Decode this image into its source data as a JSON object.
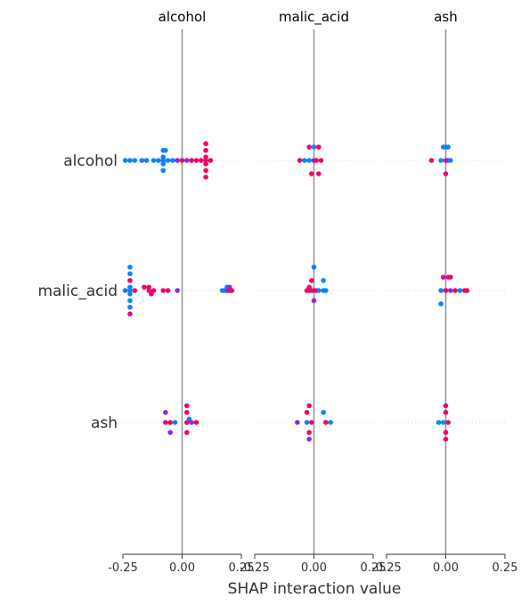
{
  "chart_data": {
    "type": "scatter",
    "kind": "shap-interaction-summary",
    "xlabel": "SHAP interaction value",
    "features": [
      "alcohol",
      "malic_acid",
      "ash"
    ],
    "panel_titles": [
      "alcohol",
      "malic_acid",
      "ash"
    ],
    "row_labels": [
      "alcohol",
      "malic_acid",
      "ash"
    ],
    "x_ticks": [
      -0.25,
      0.0,
      0.25
    ],
    "x_tick_labels": [
      "-0.25",
      "0.00",
      "0.25"
    ],
    "xlim": [
      -0.25,
      0.25
    ],
    "colormap": {
      "low": "#008bfb",
      "mid": "#8a2be2",
      "high": "#ff0052"
    },
    "grid": false,
    "points": [
      [
        [
          {
            "x": 0.1,
            "dy": -2.5,
            "v": 0.95
          },
          {
            "x": -0.08,
            "dy": -1.5,
            "v": 0.05
          },
          {
            "x": 0.1,
            "dy": -1.5,
            "v": 0.95
          },
          {
            "x": -0.07,
            "dy": -1.5,
            "v": 0.0
          },
          {
            "x": 0.1,
            "dy": -0.5,
            "v": 0.9
          },
          {
            "x": -0.08,
            "dy": -0.5,
            "v": 0.05
          },
          {
            "x": -0.24,
            "dy": 0,
            "v": 0.0
          },
          {
            "x": -0.22,
            "dy": 0,
            "v": 0.05
          },
          {
            "x": -0.2,
            "dy": 0,
            "v": 0.0
          },
          {
            "x": -0.17,
            "dy": 0,
            "v": 0.1
          },
          {
            "x": -0.15,
            "dy": 0,
            "v": 0.05
          },
          {
            "x": -0.12,
            "dy": 0,
            "v": 0.0
          },
          {
            "x": -0.1,
            "dy": 0,
            "v": 0.05
          },
          {
            "x": -0.08,
            "dy": 0,
            "v": 0.1
          },
          {
            "x": -0.06,
            "dy": 0,
            "v": 0.0
          },
          {
            "x": -0.04,
            "dy": 0,
            "v": 0.05
          },
          {
            "x": -0.02,
            "dy": 0,
            "v": 0.5
          },
          {
            "x": 0.0,
            "dy": 0,
            "v": 0.9
          },
          {
            "x": 0.02,
            "dy": 0,
            "v": 0.55
          },
          {
            "x": 0.04,
            "dy": 0,
            "v": 0.95
          },
          {
            "x": 0.06,
            "dy": 0,
            "v": 0.9
          },
          {
            "x": 0.08,
            "dy": 0,
            "v": 0.95
          },
          {
            "x": 0.1,
            "dy": 0,
            "v": 0.9
          },
          {
            "x": 0.12,
            "dy": 0,
            "v": 0.95
          },
          {
            "x": -0.08,
            "dy": 0.5,
            "v": 0.05
          },
          {
            "x": 0.1,
            "dy": 0.5,
            "v": 0.95
          },
          {
            "x": -0.08,
            "dy": 1.5,
            "v": 0.0
          },
          {
            "x": 0.1,
            "dy": 1.5,
            "v": 0.95
          },
          {
            "x": 0.1,
            "dy": 2.5,
            "v": 0.9
          }
        ],
        [
          {
            "x": -0.02,
            "dy": -2,
            "v": 0.9
          },
          {
            "x": 0.0,
            "dy": -2,
            "v": 0.05
          },
          {
            "x": 0.02,
            "dy": -2,
            "v": 0.95
          },
          {
            "x": -0.06,
            "dy": 0,
            "v": 0.9
          },
          {
            "x": -0.04,
            "dy": 0,
            "v": 0.05
          },
          {
            "x": -0.02,
            "dy": 0,
            "v": 0.0
          },
          {
            "x": 0.0,
            "dy": 0,
            "v": 0.5
          },
          {
            "x": 0.01,
            "dy": 0,
            "v": 0.95
          },
          {
            "x": 0.03,
            "dy": 0,
            "v": 0.9
          },
          {
            "x": -0.01,
            "dy": 2,
            "v": 0.95
          },
          {
            "x": 0.02,
            "dy": 2,
            "v": 0.9
          }
        ],
        [
          {
            "x": -0.01,
            "dy": -2,
            "v": 0.05
          },
          {
            "x": 0.0,
            "dy": -2,
            "v": 0.0
          },
          {
            "x": 0.01,
            "dy": -2,
            "v": 0.05
          },
          {
            "x": -0.06,
            "dy": 0,
            "v": 0.9
          },
          {
            "x": -0.02,
            "dy": 0,
            "v": 0.0
          },
          {
            "x": 0.0,
            "dy": 0,
            "v": 0.95
          },
          {
            "x": 0.01,
            "dy": 0,
            "v": 0.5
          },
          {
            "x": 0.02,
            "dy": 0,
            "v": 0.05
          },
          {
            "x": 0.0,
            "dy": 2,
            "v": 0.9
          }
        ]
      ],
      [
        [
          {
            "x": -0.22,
            "dy": -3.5,
            "v": 0.05
          },
          {
            "x": -0.22,
            "dy": -2.5,
            "v": 0.0
          },
          {
            "x": -0.22,
            "dy": -1.5,
            "v": 0.9
          },
          {
            "x": -0.22,
            "dy": -0.5,
            "v": 0.05
          },
          {
            "x": -0.16,
            "dy": -0.5,
            "v": 0.9
          },
          {
            "x": -0.14,
            "dy": -0.5,
            "v": 0.95
          },
          {
            "x": 0.19,
            "dy": -0.5,
            "v": 0.1
          },
          {
            "x": 0.2,
            "dy": -0.5,
            "v": 0.5
          },
          {
            "x": -0.24,
            "dy": 0,
            "v": 0.05
          },
          {
            "x": -0.22,
            "dy": 0,
            "v": 0.0
          },
          {
            "x": -0.2,
            "dy": 0,
            "v": 0.95
          },
          {
            "x": -0.14,
            "dy": 0,
            "v": 0.9
          },
          {
            "x": -0.12,
            "dy": 0,
            "v": 0.95
          },
          {
            "x": -0.08,
            "dy": 0,
            "v": 0.9
          },
          {
            "x": -0.06,
            "dy": 0,
            "v": 0.95
          },
          {
            "x": -0.02,
            "dy": 0,
            "v": 0.5
          },
          {
            "x": 0.17,
            "dy": 0,
            "v": 0.05
          },
          {
            "x": 0.18,
            "dy": 0,
            "v": 0.0
          },
          {
            "x": 0.19,
            "dy": 0,
            "v": 0.5
          },
          {
            "x": 0.2,
            "dy": 0,
            "v": 0.9
          },
          {
            "x": 0.21,
            "dy": 0,
            "v": 0.95
          },
          {
            "x": -0.22,
            "dy": 0.5,
            "v": 0.05
          },
          {
            "x": -0.13,
            "dy": 0.5,
            "v": 0.9
          },
          {
            "x": -0.22,
            "dy": 1.5,
            "v": 0.0
          },
          {
            "x": -0.22,
            "dy": 2.5,
            "v": 0.05
          },
          {
            "x": -0.22,
            "dy": 3.5,
            "v": 0.9
          }
        ],
        [
          {
            "x": 0.0,
            "dy": -3.5,
            "v": 0.05
          },
          {
            "x": -0.01,
            "dy": -1.5,
            "v": 0.95
          },
          {
            "x": 0.04,
            "dy": -1.5,
            "v": 0.0
          },
          {
            "x": -0.02,
            "dy": -0.5,
            "v": 0.9
          },
          {
            "x": -0.03,
            "dy": 0,
            "v": 0.95
          },
          {
            "x": -0.02,
            "dy": 0,
            "v": 0.9
          },
          {
            "x": -0.01,
            "dy": 0,
            "v": 0.95
          },
          {
            "x": 0.0,
            "dy": 0,
            "v": 0.9
          },
          {
            "x": 0.01,
            "dy": 0,
            "v": 0.95
          },
          {
            "x": 0.02,
            "dy": 0,
            "v": 0.05
          },
          {
            "x": 0.04,
            "dy": 0,
            "v": 0.0
          },
          {
            "x": 0.05,
            "dy": 0,
            "v": 0.05
          },
          {
            "x": 0.0,
            "dy": 1.5,
            "v": 0.5
          }
        ],
        [
          {
            "x": -0.01,
            "dy": -2,
            "v": 0.9
          },
          {
            "x": 0.01,
            "dy": -2,
            "v": 0.5
          },
          {
            "x": 0.02,
            "dy": -2,
            "v": 0.95
          },
          {
            "x": -0.02,
            "dy": 0,
            "v": 0.05
          },
          {
            "x": 0.0,
            "dy": 0,
            "v": 0.9
          },
          {
            "x": 0.02,
            "dy": 0,
            "v": 0.5
          },
          {
            "x": 0.04,
            "dy": 0,
            "v": 0.9
          },
          {
            "x": 0.06,
            "dy": 0,
            "v": 0.05
          },
          {
            "x": 0.08,
            "dy": 0,
            "v": 0.9
          },
          {
            "x": 0.09,
            "dy": 0,
            "v": 0.95
          },
          {
            "x": -0.02,
            "dy": 2,
            "v": 0.0
          }
        ]
      ],
      [
        [
          {
            "x": 0.02,
            "dy": -2.5,
            "v": 0.9
          },
          {
            "x": -0.07,
            "dy": -1.5,
            "v": 0.5
          },
          {
            "x": 0.02,
            "dy": -1.5,
            "v": 0.95
          },
          {
            "x": 0.03,
            "dy": -0.5,
            "v": 0.05
          },
          {
            "x": -0.07,
            "dy": 0,
            "v": 0.9
          },
          {
            "x": -0.05,
            "dy": 0,
            "v": 0.95
          },
          {
            "x": -0.03,
            "dy": 0,
            "v": 0.05
          },
          {
            "x": 0.02,
            "dy": 0,
            "v": 0.9
          },
          {
            "x": 0.04,
            "dy": 0,
            "v": 0.5
          },
          {
            "x": 0.06,
            "dy": 0,
            "v": 0.95
          },
          {
            "x": -0.05,
            "dy": 1.5,
            "v": 0.5
          },
          {
            "x": 0.02,
            "dy": 1.5,
            "v": 0.9
          }
        ],
        [
          {
            "x": -0.02,
            "dy": -2.5,
            "v": 0.9
          },
          {
            "x": -0.03,
            "dy": -1.5,
            "v": 0.95
          },
          {
            "x": 0.04,
            "dy": -1.5,
            "v": 0.05
          },
          {
            "x": -0.07,
            "dy": 0,
            "v": 0.5
          },
          {
            "x": -0.03,
            "dy": 0,
            "v": 0.05
          },
          {
            "x": -0.01,
            "dy": 0,
            "v": 0.9
          },
          {
            "x": 0.05,
            "dy": 0,
            "v": 0.95
          },
          {
            "x": 0.07,
            "dy": 0,
            "v": 0.05
          },
          {
            "x": -0.02,
            "dy": 1.5,
            "v": 0.9
          },
          {
            "x": -0.02,
            "dy": 2.5,
            "v": 0.5
          }
        ],
        [
          {
            "x": 0.0,
            "dy": -2.5,
            "v": 0.9
          },
          {
            "x": 0.0,
            "dy": -1.5,
            "v": 0.95
          },
          {
            "x": -0.03,
            "dy": 0,
            "v": 0.05
          },
          {
            "x": -0.01,
            "dy": 0,
            "v": 0.0
          },
          {
            "x": 0.01,
            "dy": 0,
            "v": 0.9
          },
          {
            "x": 0.0,
            "dy": 1.5,
            "v": 0.95
          },
          {
            "x": 0.0,
            "dy": 2.5,
            "v": 0.9
          }
        ]
      ]
    ]
  }
}
